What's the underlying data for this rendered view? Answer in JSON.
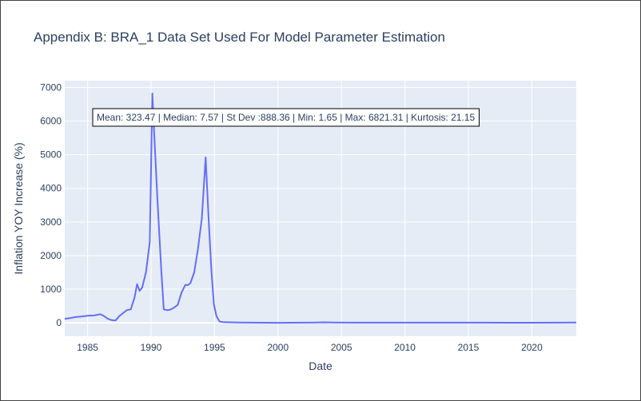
{
  "chart_data": {
    "type": "line",
    "title": "Appendix B: BRA_1 Data Set Used For Model Parameter Estimation",
    "xlabel": "Date",
    "ylabel": "Inflation YOY Increase (%)",
    "xlim": [
      1983.2,
      2023.5
    ],
    "ylim": [
      -400,
      7200
    ],
    "x_ticks": [
      1985,
      1990,
      1995,
      2000,
      2005,
      2010,
      2015,
      2020
    ],
    "y_ticks": [
      0,
      1000,
      2000,
      3000,
      4000,
      5000,
      6000,
      7000
    ],
    "grid": true,
    "annotation": "Mean: 323.47 | Median: 7.57 | St Dev :888.36 | Min: 1.65 | Max: 6821.31 | Kurtosis: 21.15",
    "series": [
      {
        "color": "#636efa",
        "x": [
          1983.2,
          1983.6,
          1984.0,
          1984.5,
          1985.0,
          1985.5,
          1986.0,
          1986.3,
          1986.6,
          1986.9,
          1987.2,
          1987.5,
          1987.8,
          1988.1,
          1988.4,
          1988.7,
          1988.9,
          1989.1,
          1989.3,
          1989.6,
          1989.9,
          1990.1,
          1990.25,
          1990.5,
          1990.8,
          1991.0,
          1991.25,
          1991.5,
          1991.8,
          1992.1,
          1992.4,
          1992.7,
          1992.9,
          1993.1,
          1993.4,
          1993.7,
          1994.0,
          1994.3,
          1994.55,
          1994.75,
          1994.95,
          1995.15,
          1995.4,
          1995.7,
          1996.0,
          1997.0,
          1998.0,
          1999.0,
          2000.0,
          2001.0,
          2002.0,
          2003.0,
          2003.6,
          2004.5,
          2006.0,
          2008.0,
          2010.0,
          2012.0,
          2014.0,
          2016.0,
          2018.0,
          2020.0,
          2022.0,
          2023.5
        ],
        "y": [
          120,
          140,
          170,
          190,
          210,
          220,
          255,
          200,
          120,
          80,
          70,
          200,
          290,
          380,
          400,
          750,
          1150,
          950,
          1050,
          1500,
          2400,
          6821,
          5600,
          3700,
          1600,
          400,
          380,
          390,
          450,
          530,
          900,
          1130,
          1120,
          1180,
          1500,
          2200,
          3100,
          4920,
          3000,
          1600,
          550,
          200,
          40,
          20,
          18,
          12,
          5,
          3,
          2,
          4,
          7,
          12,
          16,
          10,
          7,
          6,
          5,
          6,
          7,
          6,
          4,
          3,
          6,
          8
        ]
      }
    ]
  }
}
